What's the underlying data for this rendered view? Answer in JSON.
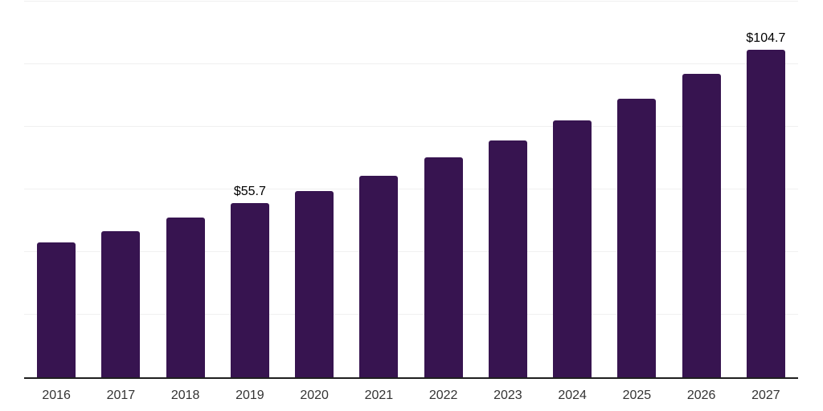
{
  "chart_data": {
    "type": "bar",
    "categories": [
      "2016",
      "2017",
      "2018",
      "2019",
      "2020",
      "2021",
      "2022",
      "2023",
      "2024",
      "2025",
      "2026",
      "2027"
    ],
    "values": [
      43.2,
      46.7,
      51.1,
      55.7,
      59.5,
      64.4,
      70.2,
      75.6,
      82.0,
      88.9,
      96.8,
      104.7
    ],
    "data_labels": [
      "",
      "",
      "",
      "$55.7",
      "",
      "",
      "",
      "",
      "",
      "",
      "",
      "$104.7"
    ],
    "title": "",
    "xlabel": "",
    "ylabel": "",
    "ylim": [
      0,
      120
    ],
    "grid_interval": 20,
    "grid": "horizontal-only",
    "legend": "none",
    "y_tick_labels_visible": false,
    "bar_color": "#371450",
    "grid_color": "#f0f0f0",
    "axis_line_color": "#1f1f1f",
    "tick_label_color": "#333333",
    "data_label_color": "#000000",
    "background_color": "#ffffff"
  }
}
